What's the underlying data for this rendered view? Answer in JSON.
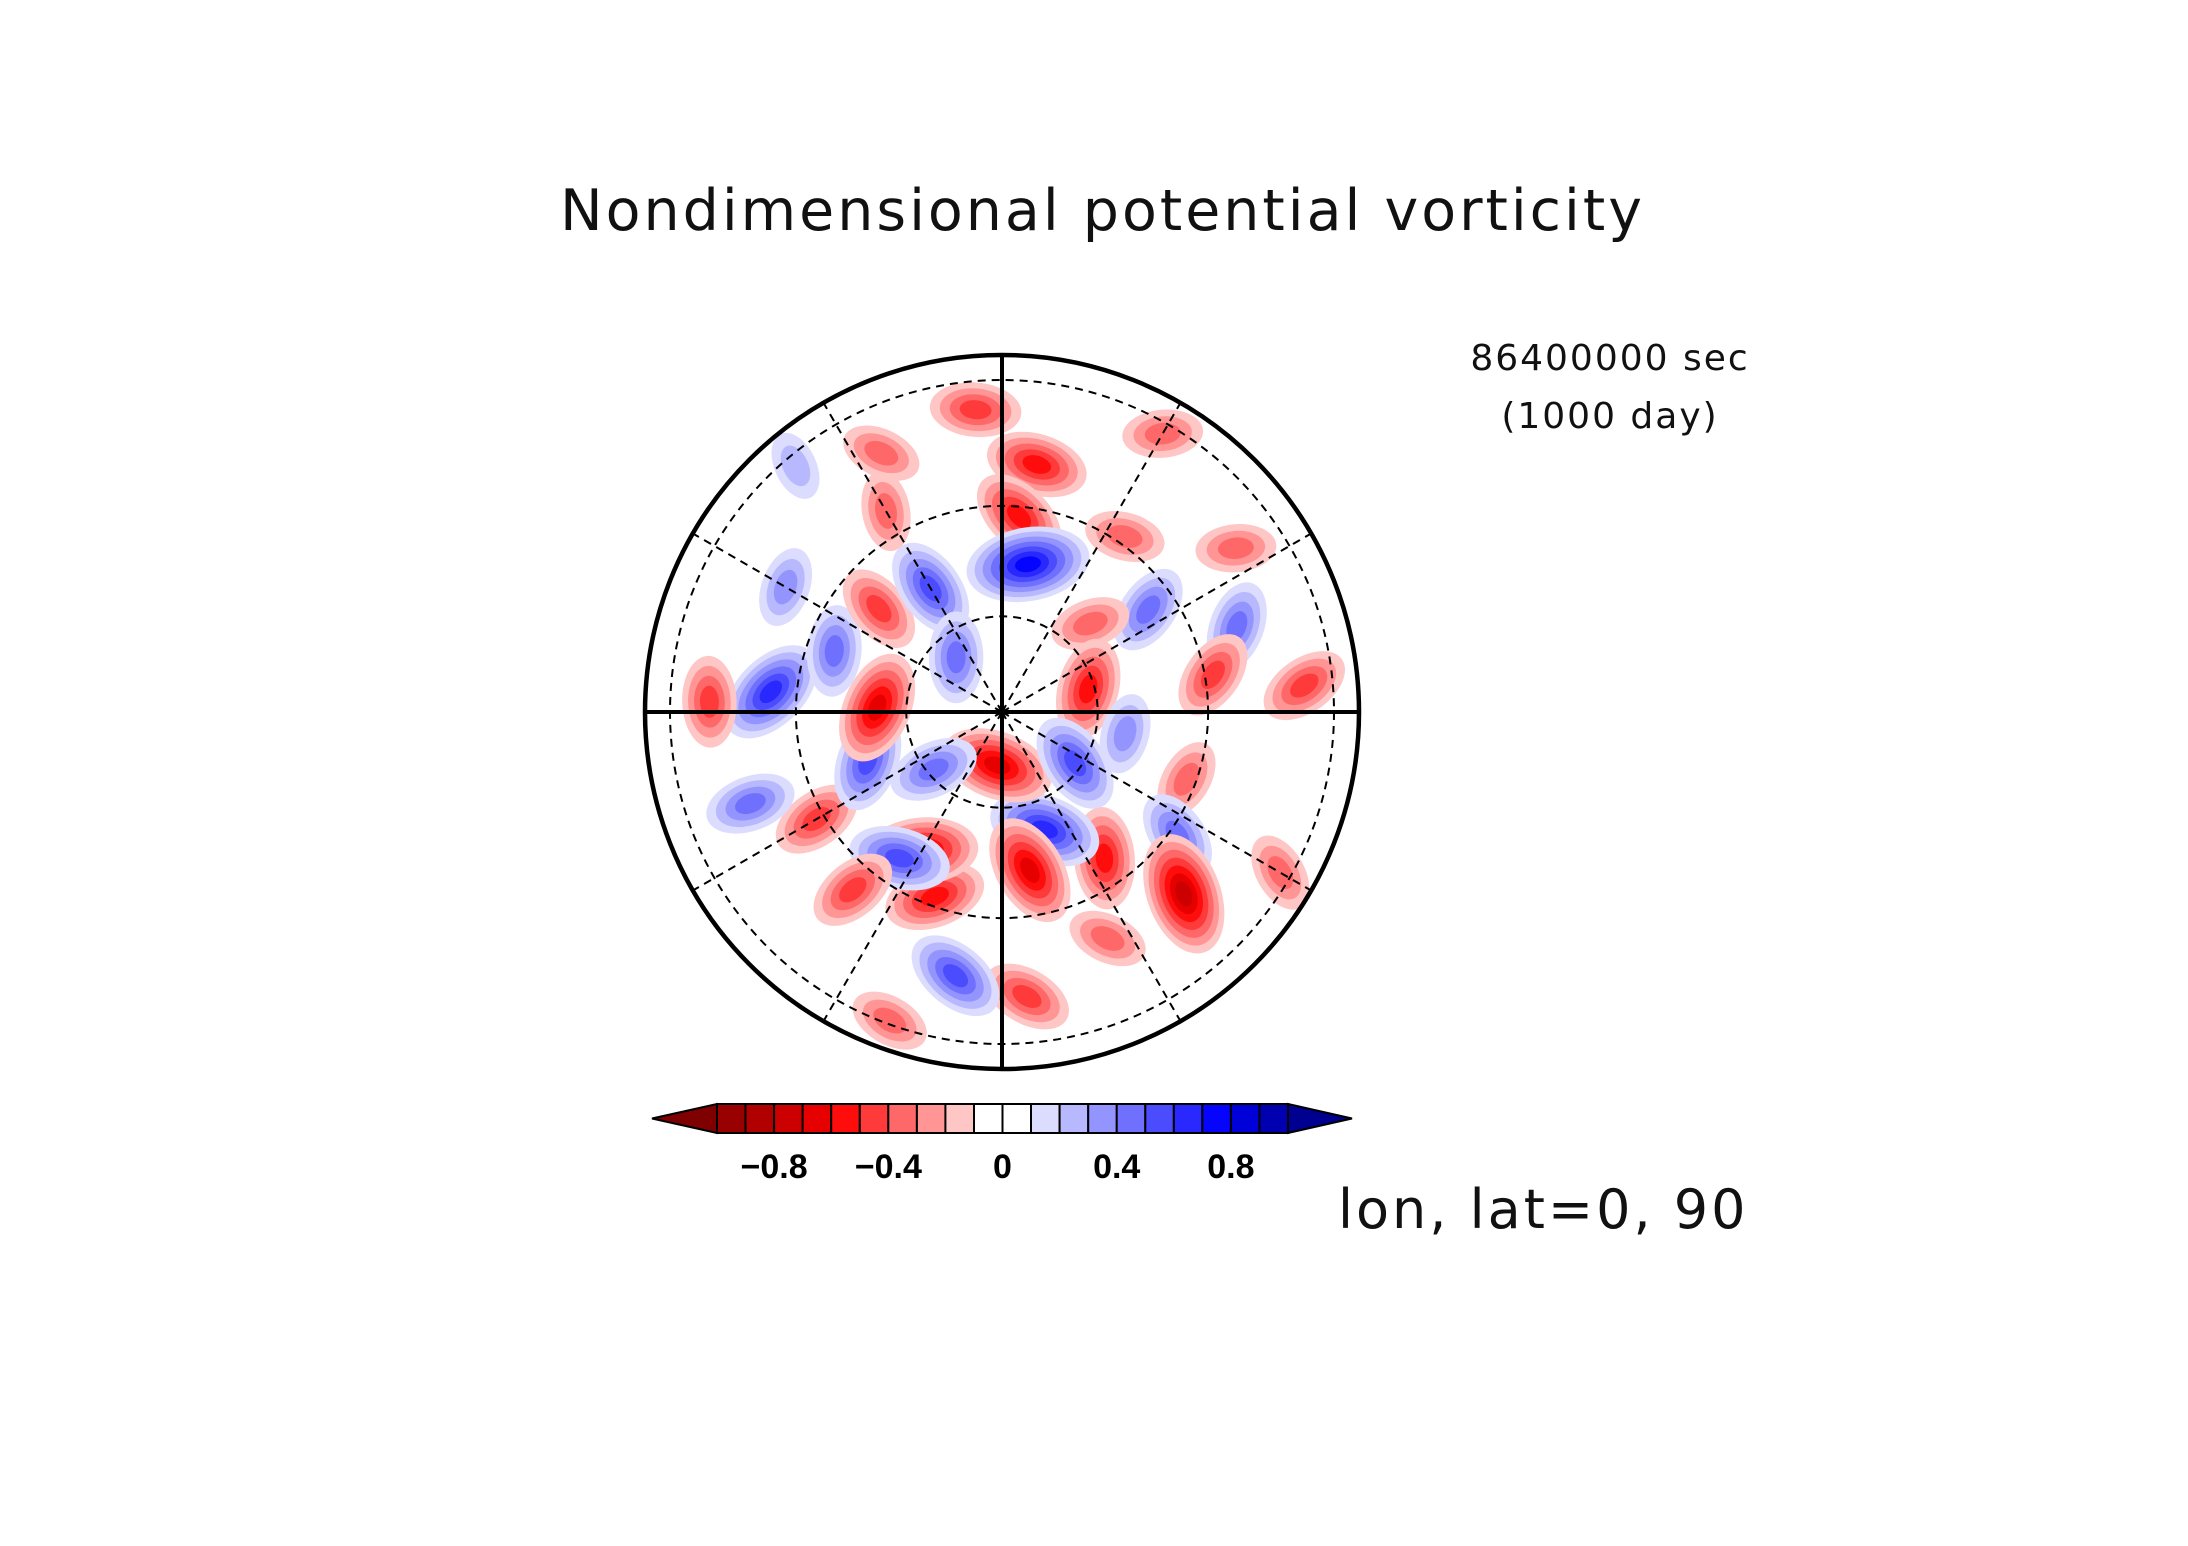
{
  "chart_data": {
    "type": "heatmap",
    "projection": "north-polar-stereographic",
    "title": "Nondimensional potential vorticity",
    "time": {
      "seconds": "86400000 sec",
      "days": "(1000 day)"
    },
    "slice_label": "lon, lat=0, 90",
    "colorbar": {
      "levels": [
        -1.0,
        -0.9,
        -0.8,
        -0.7,
        -0.6,
        -0.5,
        -0.4,
        -0.3,
        -0.2,
        -0.1,
        0,
        0.1,
        0.2,
        0.3,
        0.4,
        0.5,
        0.6,
        0.7,
        0.8,
        0.9,
        1.0
      ],
      "colors": [
        "#7f0000",
        "#990000",
        "#b00000",
        "#cc0000",
        "#e60000",
        "#ff0d0d",
        "#ff3a3a",
        "#ff6868",
        "#ff9595",
        "#ffc6c6",
        "#ffffff",
        "#ffffff",
        "#dcdcff",
        "#b8b8ff",
        "#9494ff",
        "#7070ff",
        "#4c4cff",
        "#2828ff",
        "#0505ff",
        "#0000d8",
        "#0000b0",
        "#000090"
      ],
      "tick_labels": [
        {
          "value": -0.8,
          "label": "−0.8"
        },
        {
          "value": -0.4,
          "label": "−0.4"
        },
        {
          "value": 0,
          "label": "0"
        },
        {
          "value": 0.4,
          "label": "0.4"
        },
        {
          "value": 0.8,
          "label": "0.8"
        }
      ]
    },
    "grid": {
      "meridians_every_deg": 30,
      "latitude_circles": [
        60,
        30,
        0
      ]
    },
    "field_blobs": [
      {
        "r": 0.85,
        "theta": 95,
        "value": -0.4
      },
      {
        "r": 0.7,
        "theta": 82,
        "value": -0.5
      },
      {
        "r": 0.55,
        "theta": 85,
        "value": -0.5
      },
      {
        "r": 0.42,
        "theta": 80,
        "value": 0.7
      },
      {
        "r": 0.9,
        "theta": 60,
        "value": -0.3
      },
      {
        "r": 0.6,
        "theta": 55,
        "value": -0.3
      },
      {
        "r": 0.5,
        "theta": 35,
        "value": 0.4
      },
      {
        "r": 0.35,
        "theta": 45,
        "value": -0.3
      },
      {
        "r": 0.8,
        "theta": 35,
        "value": -0.3
      },
      {
        "r": 0.7,
        "theta": 20,
        "value": 0.4
      },
      {
        "r": 0.6,
        "theta": 10,
        "value": -0.4
      },
      {
        "r": 0.85,
        "theta": 5,
        "value": -0.4
      },
      {
        "r": 0.25,
        "theta": 15,
        "value": -0.5
      },
      {
        "r": 0.35,
        "theta": -10,
        "value": 0.3
      },
      {
        "r": 0.55,
        "theta": -20,
        "value": -0.3
      },
      {
        "r": 0.6,
        "theta": -35,
        "value": 0.4
      },
      {
        "r": 0.72,
        "theta": -45,
        "value": -0.7
      },
      {
        "r": 0.5,
        "theta": -55,
        "value": -0.5
      },
      {
        "r": 0.35,
        "theta": -70,
        "value": 0.6
      },
      {
        "r": 0.15,
        "theta": -95,
        "value": -0.6
      },
      {
        "r": 0.45,
        "theta": -80,
        "value": -0.6
      },
      {
        "r": 0.7,
        "theta": -65,
        "value": -0.3
      },
      {
        "r": 0.8,
        "theta": -85,
        "value": -0.4
      },
      {
        "r": 0.75,
        "theta": -100,
        "value": 0.5
      },
      {
        "r": 0.55,
        "theta": -110,
        "value": -0.5
      },
      {
        "r": 0.45,
        "theta": -120,
        "value": -0.6
      },
      {
        "r": 0.5,
        "theta": -125,
        "value": 0.5
      },
      {
        "r": 0.65,
        "theta": -130,
        "value": -0.4
      },
      {
        "r": 0.6,
        "theta": -150,
        "value": -0.4
      },
      {
        "r": 0.75,
        "theta": -160,
        "value": 0.4
      },
      {
        "r": 0.4,
        "theta": -160,
        "value": 0.5
      },
      {
        "r": 0.35,
        "theta": 178,
        "value": -0.6
      },
      {
        "r": 0.65,
        "theta": 175,
        "value": 0.6
      },
      {
        "r": 0.82,
        "theta": 178,
        "value": -0.4
      },
      {
        "r": 0.5,
        "theta": 160,
        "value": 0.4
      },
      {
        "r": 0.7,
        "theta": 150,
        "value": 0.3
      },
      {
        "r": 0.45,
        "theta": 140,
        "value": -0.4
      },
      {
        "r": 0.4,
        "theta": 120,
        "value": 0.5
      },
      {
        "r": 0.65,
        "theta": 120,
        "value": -0.3
      },
      {
        "r": 0.8,
        "theta": 115,
        "value": -0.3
      },
      {
        "r": 0.9,
        "theta": 130,
        "value": 0.2
      },
      {
        "r": 0.2,
        "theta": 130,
        "value": 0.4
      },
      {
        "r": 0.25,
        "theta": -35,
        "value": 0.5
      },
      {
        "r": 0.25,
        "theta": -140,
        "value": 0.4
      },
      {
        "r": 0.92,
        "theta": -110,
        "value": -0.3
      },
      {
        "r": 0.9,
        "theta": -30,
        "value": -0.3
      }
    ]
  }
}
